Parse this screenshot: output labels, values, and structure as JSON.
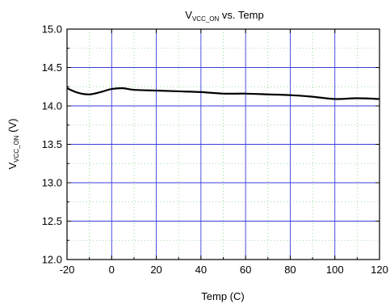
{
  "chart_data": {
    "type": "line",
    "title": {
      "main": "V",
      "sub": "VCC_ON",
      "rest": " vs. Temp"
    },
    "xlabel": "Temp (C)",
    "ylabel": {
      "main": "V",
      "sub": "VCC_ON",
      "rest": " (V)"
    },
    "xlim": [
      -20,
      120
    ],
    "ylim": [
      12.0,
      15.0
    ],
    "x_ticks": [
      "-20",
      "0",
      "20",
      "40",
      "60",
      "80",
      "100",
      "120"
    ],
    "y_ticks": [
      "12.0",
      "12.5",
      "13.0",
      "13.5",
      "14.0",
      "14.5",
      "15.0"
    ],
    "grid": true,
    "grid_color": "#3b3bdc",
    "minor_grid_color": "#7fd07f",
    "line_color": "#000000",
    "series": [
      {
        "x": [
          -20,
          -15,
          -10,
          -5,
          0,
          5,
          10,
          20,
          30,
          40,
          50,
          60,
          70,
          80,
          90,
          100,
          110,
          120
        ],
        "y": [
          14.23,
          14.17,
          14.15,
          14.18,
          14.22,
          14.23,
          14.21,
          14.2,
          14.19,
          14.18,
          14.16,
          14.16,
          14.15,
          14.14,
          14.12,
          14.09,
          14.1,
          14.09
        ]
      }
    ]
  }
}
